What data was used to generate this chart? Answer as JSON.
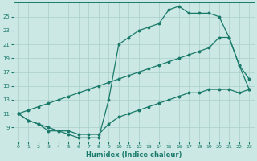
{
  "xlabel": "Humidex (Indice chaleur)",
  "background_color": "#cce8e5",
  "grid_color": "#aacfcc",
  "line_color": "#1a7a6a",
  "xlim": [
    -0.5,
    23.5
  ],
  "ylim": [
    7,
    27
  ],
  "yticks": [
    9,
    11,
    13,
    15,
    17,
    19,
    21,
    23,
    25
  ],
  "xticks": [
    0,
    1,
    2,
    3,
    4,
    5,
    6,
    7,
    8,
    9,
    10,
    11,
    12,
    13,
    14,
    15,
    16,
    17,
    18,
    19,
    20,
    21,
    22,
    23
  ],
  "c1_x": [
    0,
    1,
    2,
    3,
    4,
    5,
    6,
    7,
    8,
    9,
    10,
    11,
    12,
    13,
    14,
    15,
    16,
    17,
    18,
    19,
    20,
    21,
    22,
    23
  ],
  "c1_y": [
    11,
    10,
    9.5,
    8.5,
    8.5,
    8.0,
    7.5,
    7.5,
    7.5,
    13,
    21,
    22,
    23,
    23.5,
    24,
    26,
    26.5,
    25.5,
    25.5,
    25.5,
    25,
    22,
    18,
    16
  ],
  "c2_x": [
    0,
    1,
    2,
    3,
    4,
    5,
    6,
    7,
    8,
    9,
    10,
    11,
    12,
    13,
    14,
    15,
    16,
    17,
    18,
    19,
    20,
    21,
    22,
    23
  ],
  "c2_y": [
    11,
    11.5,
    12,
    12.5,
    13,
    13.5,
    14,
    14.5,
    15,
    15.5,
    16,
    16.5,
    17,
    17.5,
    18,
    18.5,
    19,
    19.5,
    20,
    20.5,
    22,
    22,
    18,
    14.5
  ],
  "c3_x": [
    0,
    1,
    2,
    3,
    4,
    5,
    6,
    7,
    8,
    9,
    10,
    11,
    12,
    13,
    14,
    15,
    16,
    17,
    18,
    19,
    20,
    21,
    22,
    23
  ],
  "c3_y": [
    11,
    10,
    9.5,
    9,
    8.5,
    8.5,
    8,
    8,
    8,
    9.5,
    10.5,
    11,
    11.5,
    12,
    12.5,
    13,
    13.5,
    14,
    14,
    14.5,
    14.5,
    14.5,
    14,
    14.5
  ]
}
